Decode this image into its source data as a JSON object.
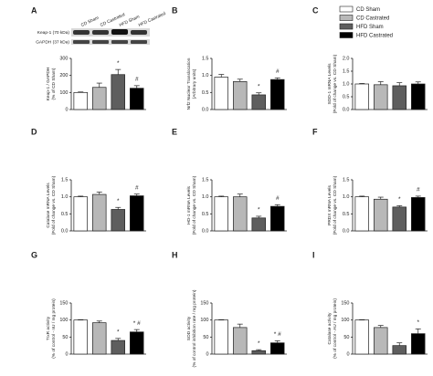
{
  "legend": {
    "series": [
      {
        "name": "CD Sham",
        "color": "#ffffff"
      },
      {
        "name": "CD Castrated",
        "color": "#b8b8b8"
      },
      {
        "name": "HFD Sham",
        "color": "#5e5e5e"
      },
      {
        "name": "HFD Castrated",
        "color": "#000000"
      }
    ]
  },
  "blot": {
    "lanes": [
      "CD Sham",
      "CD Castrated",
      "HFD Sham",
      "HFD Castrated"
    ],
    "rows": [
      "Keap-1 (70 kDa)",
      "GAPDH (37 kDa)"
    ]
  },
  "chart_data": [
    {
      "type": "bar",
      "panel": "A",
      "ylabel": "Keap-1 / GAPDH\n(% of CD Sham)",
      "values": [
        100,
        130,
        205,
        125
      ],
      "errors": [
        3,
        25,
        30,
        15
      ],
      "annotations": [
        null,
        null,
        "*",
        "#"
      ],
      "ylim": [
        0,
        300
      ],
      "yticks": [
        0,
        100,
        200,
        300
      ]
    },
    {
      "type": "bar",
      "panel": "B",
      "ylabel": "Nrf2 Nuclear Translocation\n(Arbitrary units)",
      "values": [
        0.95,
        0.82,
        0.43,
        0.88
      ],
      "errors": [
        0.08,
        0.07,
        0.06,
        0.05
      ],
      "annotations": [
        null,
        null,
        "*",
        "#"
      ],
      "ylim": [
        0,
        1.5
      ],
      "yticks": [
        {
          "value": 0,
          "label": "0.0"
        },
        0.5,
        {
          "value": 1,
          "label": "1.0"
        },
        1.5
      ]
    },
    {
      "type": "bar",
      "panel": "C",
      "ylabel": "SOD-1 mRNA Levels\n(Fold of change vs. CD Sham)",
      "values": [
        1.0,
        0.97,
        0.93,
        1.0
      ],
      "errors": [
        0.02,
        0.12,
        0.12,
        0.08
      ],
      "annotations": [
        null,
        null,
        null,
        null
      ],
      "ylim": [
        0,
        2
      ],
      "yticks": [
        {
          "value": 0,
          "label": "0.0"
        },
        0.5,
        {
          "value": 1,
          "label": "1.0"
        },
        1.5,
        {
          "value": 2,
          "label": "2.0"
        }
      ]
    },
    {
      "type": "bar",
      "panel": "D",
      "ylabel": "Catalase mRNA Levels\n(Fold of change vs. CD Sham)",
      "values": [
        1.0,
        1.07,
        0.63,
        1.03
      ],
      "errors": [
        0.02,
        0.07,
        0.06,
        0.05
      ],
      "annotations": [
        null,
        null,
        "*",
        "#"
      ],
      "ylim": [
        0,
        1.5
      ],
      "yticks": [
        {
          "value": 0,
          "label": "0.0"
        },
        0.5,
        {
          "value": 1,
          "label": "1.0"
        },
        1.5
      ]
    },
    {
      "type": "bar",
      "panel": "E",
      "ylabel": "HO-1 mRNA Levels\n(Fold of change vs. CD Sham)",
      "values": [
        1.0,
        1.0,
        0.38,
        0.72
      ],
      "errors": [
        0.02,
        0.08,
        0.05,
        0.05
      ],
      "annotations": [
        null,
        null,
        "*",
        "#"
      ],
      "ylim": [
        0,
        1.5
      ],
      "yticks": [
        {
          "value": 0,
          "label": "0.0"
        },
        0.5,
        {
          "value": 1,
          "label": "1.0"
        },
        1.5
      ]
    },
    {
      "type": "bar",
      "panel": "F",
      "ylabel": "PRDX mRNA Levels\n(Fold of change vs. CD Sham)",
      "values": [
        1.0,
        0.93,
        0.7,
        0.98
      ],
      "errors": [
        0.02,
        0.06,
        0.04,
        0.04
      ],
      "annotations": [
        null,
        null,
        "*",
        "#"
      ],
      "ylim": [
        0,
        1.5
      ],
      "yticks": [
        {
          "value": 0,
          "label": "0.0"
        },
        0.5,
        {
          "value": 1,
          "label": "1.0"
        },
        1.5
      ]
    },
    {
      "type": "bar",
      "panel": "G",
      "ylabel": "TrxR activity\n(% of control - nU / mg protein)",
      "values": [
        100,
        92,
        40,
        65
      ],
      "errors": [
        1,
        5,
        6,
        7
      ],
      "annotations": [
        null,
        null,
        "*",
        "* #"
      ],
      "ylim": [
        0,
        150
      ],
      "yticks": [
        0,
        50,
        100,
        150
      ]
    },
    {
      "type": "bar",
      "panel": "H",
      "ylabel": "SOD activity\n(% of control inhibition rate / mg protein)",
      "values": [
        100,
        78,
        10,
        33
      ],
      "errors": [
        1,
        10,
        3,
        6
      ],
      "annotations": [
        null,
        null,
        "*",
        "* #"
      ],
      "ylim": [
        0,
        150
      ],
      "yticks": [
        0,
        50,
        100,
        150
      ]
    },
    {
      "type": "bar",
      "panel": "I",
      "ylabel": "Catalase activity\n(% of control - AU / mg protein)",
      "values": [
        100,
        78,
        25,
        60
      ],
      "errors": [
        1,
        6,
        8,
        14
      ],
      "annotations": [
        null,
        null,
        null,
        "*"
      ],
      "ylim": [
        0,
        150
      ],
      "yticks": [
        0,
        50,
        100,
        150
      ]
    }
  ]
}
